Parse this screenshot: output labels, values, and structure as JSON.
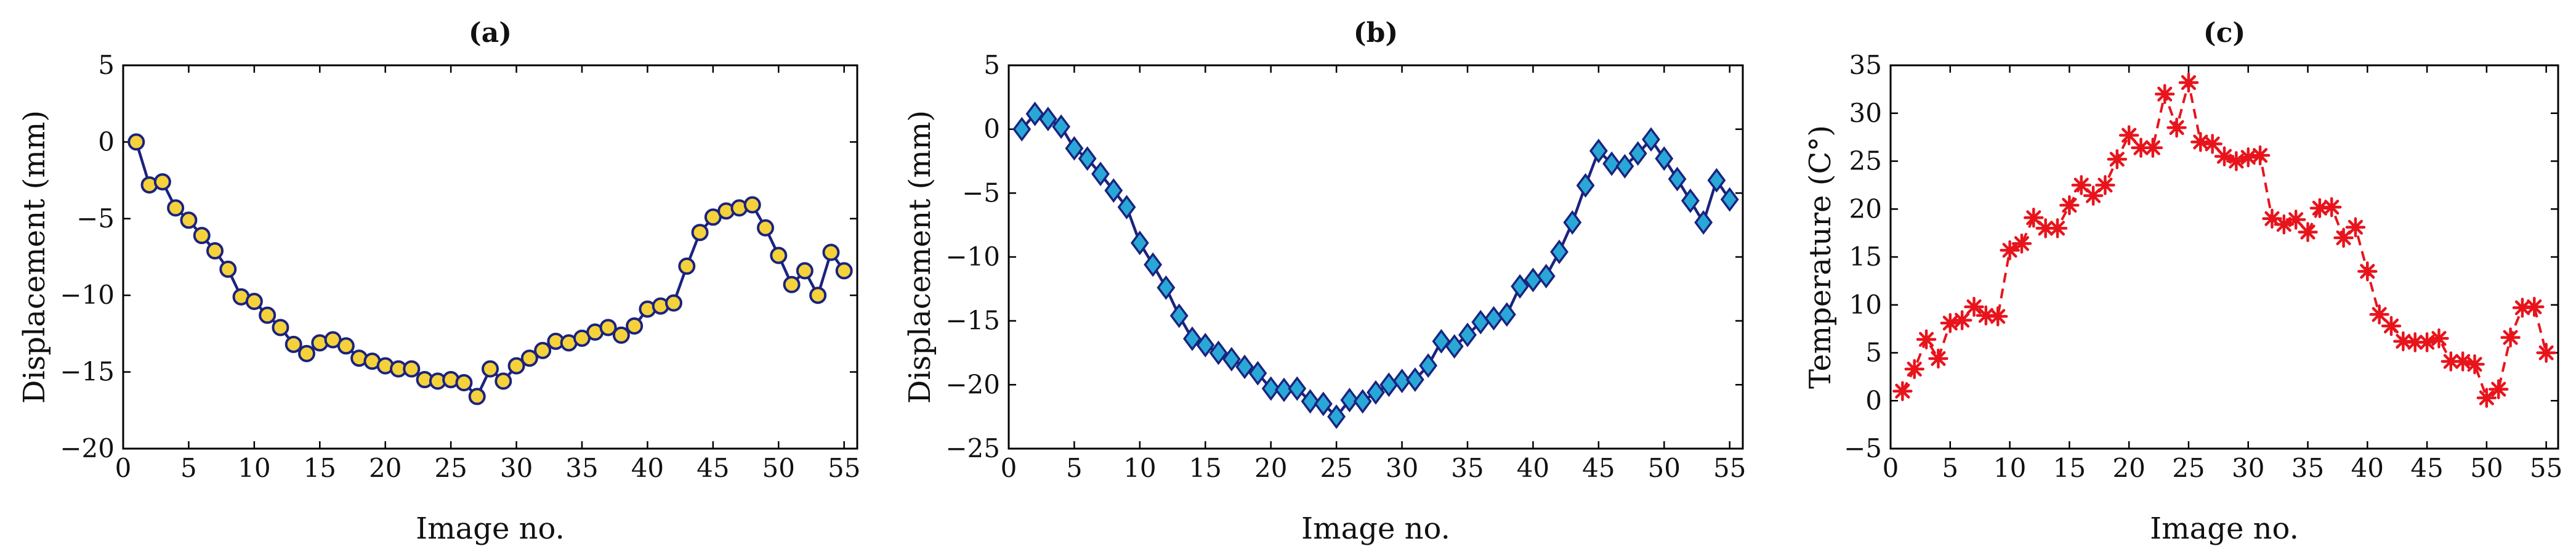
{
  "chart_data": [
    {
      "type": "line",
      "title": "(a)",
      "xlabel": "Image no.",
      "ylabel": "Displacement (mm)",
      "xlim": [
        0,
        56
      ],
      "ylim": [
        -20,
        5
      ],
      "xticks": [
        "0",
        "5",
        "10",
        "15",
        "20",
        "25",
        "30",
        "35",
        "40",
        "45",
        "50",
        "55"
      ],
      "yticks": [
        "5",
        "0",
        "−5",
        "−10",
        "−15",
        "−20"
      ],
      "grid": false,
      "marker": "circle",
      "line_color": "#1a237e",
      "marker_fill": "#f5d13b",
      "x": [
        1,
        2,
        3,
        4,
        5,
        6,
        7,
        8,
        9,
        10,
        11,
        12,
        13,
        14,
        15,
        16,
        17,
        18,
        19,
        20,
        21,
        22,
        23,
        24,
        25,
        26,
        27,
        28,
        29,
        30,
        31,
        32,
        33,
        34,
        35,
        36,
        37,
        38,
        39,
        40,
        41,
        42,
        43,
        44,
        45,
        46,
        47,
        48,
        49,
        50,
        51,
        52,
        53,
        54,
        55
      ],
      "y": [
        0,
        -2.8,
        -2.6,
        -4.3,
        -5.1,
        -6.1,
        -7.1,
        -8.3,
        -10.1,
        -10.4,
        -11.3,
        -12.1,
        -13.2,
        -13.8,
        -13.1,
        -12.9,
        -13.3,
        -14.1,
        -14.3,
        -14.6,
        -14.8,
        -14.8,
        -15.5,
        -15.6,
        -15.5,
        -15.7,
        -16.6,
        -14.8,
        -15.6,
        -14.6,
        -14.1,
        -13.6,
        -13.0,
        -13.1,
        -12.8,
        -12.4,
        -12.1,
        -12.6,
        -12.0,
        -10.9,
        -10.7,
        -10.5,
        -8.1,
        -5.9,
        -4.9,
        -4.5,
        -4.3,
        -4.1,
        -5.6,
        -7.4,
        -9.3,
        -8.4,
        -10.0,
        -7.2,
        -8.4
      ]
    },
    {
      "type": "line",
      "title": "(b)",
      "xlabel": "Image no.",
      "ylabel": "Displacement (mm)",
      "xlim": [
        0,
        56
      ],
      "ylim": [
        -25,
        5
      ],
      "xticks": [
        "0",
        "5",
        "10",
        "15",
        "20",
        "25",
        "30",
        "35",
        "40",
        "45",
        "50",
        "55"
      ],
      "yticks": [
        "5",
        "0",
        "−5",
        "−10",
        "−15",
        "−20",
        "−25"
      ],
      "grid": false,
      "marker": "diamond",
      "line_color": "#1a237e",
      "marker_fill": "#29a8d8",
      "x": [
        1,
        2,
        3,
        4,
        5,
        6,
        7,
        8,
        9,
        10,
        11,
        12,
        13,
        14,
        15,
        16,
        17,
        18,
        19,
        20,
        21,
        22,
        23,
        24,
        25,
        26,
        27,
        28,
        29,
        30,
        31,
        32,
        33,
        34,
        35,
        36,
        37,
        38,
        39,
        40,
        41,
        42,
        43,
        44,
        45,
        46,
        47,
        48,
        49,
        50,
        51,
        52,
        53,
        54,
        55
      ],
      "y": [
        0,
        1.2,
        0.8,
        0.2,
        -1.5,
        -2.3,
        -3.5,
        -4.8,
        -6.1,
        -8.9,
        -10.6,
        -12.4,
        -14.6,
        -16.4,
        -16.9,
        -17.5,
        -18.0,
        -18.6,
        -19.1,
        -20.3,
        -20.4,
        -20.3,
        -21.3,
        -21.5,
        -22.5,
        -21.2,
        -21.3,
        -20.6,
        -20.0,
        -19.7,
        -19.6,
        -18.5,
        -16.6,
        -17.0,
        -16.1,
        -15.1,
        -14.8,
        -14.5,
        -12.3,
        -11.8,
        -11.5,
        -9.6,
        -7.3,
        -4.4,
        -1.7,
        -2.7,
        -2.9,
        -1.9,
        -0.8,
        -2.3,
        -3.9,
        -5.6,
        -7.3,
        -4.0,
        -5.5
      ]
    },
    {
      "type": "line",
      "title": "(c)",
      "xlabel": "Image no.",
      "ylabel": "Temperature (C°)",
      "xlim": [
        0,
        56
      ],
      "ylim": [
        -5,
        35
      ],
      "xticks": [
        "0",
        "5",
        "10",
        "15",
        "20",
        "25",
        "30",
        "35",
        "40",
        "45",
        "50",
        "55"
      ],
      "yticks": [
        "35",
        "30",
        "25",
        "20",
        "15",
        "10",
        "5",
        "0",
        "−5"
      ],
      "grid": false,
      "marker": "asterisk",
      "line_style": "dashed",
      "line_color": "#e8141c",
      "marker_fill": "#e8141c",
      "x": [
        1,
        2,
        3,
        4,
        5,
        6,
        7,
        8,
        9,
        10,
        11,
        12,
        13,
        14,
        15,
        16,
        17,
        18,
        19,
        20,
        21,
        22,
        23,
        24,
        25,
        26,
        27,
        28,
        29,
        30,
        31,
        32,
        33,
        34,
        35,
        36,
        37,
        38,
        39,
        40,
        41,
        42,
        43,
        44,
        45,
        46,
        47,
        48,
        49,
        50,
        51,
        52,
        53,
        54,
        55
      ],
      "y": [
        1,
        3.3,
        6.4,
        4.4,
        8.1,
        8.4,
        9.8,
        8.9,
        8.8,
        15.7,
        16.4,
        19.1,
        18.0,
        18.0,
        20.4,
        22.5,
        21.4,
        22.5,
        25.2,
        27.7,
        26.4,
        26.4,
        32.0,
        28.5,
        33.2,
        27.0,
        26.8,
        25.5,
        25.0,
        25.4,
        25.6,
        19.0,
        18.4,
        18.9,
        17.6,
        20.1,
        20.2,
        17.0,
        18.1,
        13.5,
        9.0,
        7.8,
        6.2,
        6.1,
        6.1,
        6.5,
        4.1,
        4.1,
        3.8,
        0.3,
        1.2,
        6.6,
        9.7,
        9.8,
        5.0
      ]
    }
  ]
}
